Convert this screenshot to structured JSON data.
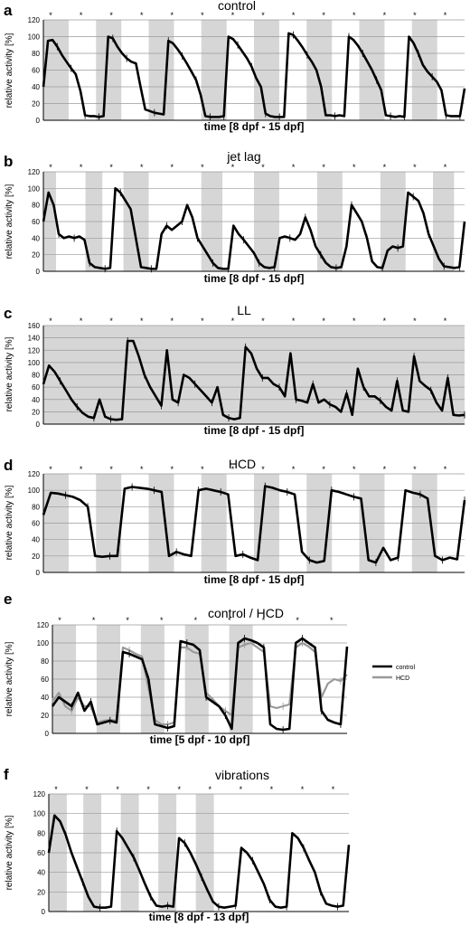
{
  "chart_data": [
    {
      "panel_label": "a",
      "title": "control",
      "type": "line",
      "xlabel": "time [8 dpf - 15 dpf]",
      "ylabel": "relative activity [%]",
      "ylim": [
        0,
        120
      ],
      "yticks": [
        0,
        20,
        40,
        60,
        80,
        100,
        120
      ],
      "grid": true,
      "marker": "*",
      "marker_count": 14,
      "shaded_intervals": [
        [
          0,
          0.12
        ],
        [
          0.25,
          0.37
        ],
        [
          0.5,
          0.62
        ],
        [
          0.75,
          0.87
        ],
        [
          1.0,
          1.12
        ],
        [
          1.25,
          1.37
        ],
        [
          1.5,
          1.62
        ],
        [
          1.75,
          1.87
        ]
      ],
      "series": [
        {
          "values": [
            40,
            95,
            96,
            88,
            78,
            70,
            62,
            55,
            35,
            6,
            5,
            5,
            4,
            5,
            100,
            98,
            88,
            80,
            74,
            70,
            68,
            40,
            13,
            11,
            9,
            8,
            7,
            95,
            92,
            85,
            77,
            68,
            58,
            48,
            30,
            5,
            4,
            4,
            4,
            5,
            100,
            97,
            90,
            82,
            74,
            64,
            50,
            40,
            8,
            5,
            4,
            4,
            4,
            104,
            102,
            95,
            87,
            78,
            70,
            60,
            40,
            6,
            6,
            5,
            6,
            5,
            100,
            96,
            89,
            80,
            70,
            60,
            48,
            36,
            6,
            5,
            4,
            5,
            4,
            100,
            92,
            80,
            66,
            58,
            52,
            46,
            36,
            6,
            5,
            5,
            5,
            38
          ]
        }
      ]
    },
    {
      "panel_label": "b",
      "title": "jet lag",
      "type": "line",
      "xlabel": "time [8 dpf - 15 dpf]",
      "ylabel": "relative activity [%]",
      "ylim": [
        0,
        120
      ],
      "yticks": [
        0,
        20,
        40,
        60,
        80,
        100,
        120
      ],
      "grid": true,
      "marker": "*",
      "marker_count": 14,
      "shaded_intervals": [
        [
          0,
          0.06
        ],
        [
          0.2,
          0.28
        ],
        [
          0.38,
          0.5
        ],
        [
          0.75,
          0.85
        ],
        [
          1.0,
          1.12
        ],
        [
          1.3,
          1.42
        ],
        [
          1.6,
          1.72
        ],
        [
          1.85,
          1.95
        ]
      ],
      "series": [
        {
          "values": [
            60,
            95,
            80,
            45,
            40,
            42,
            40,
            42,
            38,
            10,
            5,
            4,
            3,
            4,
            100,
            95,
            85,
            75,
            40,
            5,
            4,
            3,
            3,
            45,
            55,
            50,
            55,
            60,
            80,
            65,
            40,
            30,
            20,
            10,
            4,
            3,
            3,
            55,
            45,
            38,
            30,
            22,
            10,
            5,
            4,
            5,
            40,
            42,
            40,
            38,
            45,
            65,
            50,
            30,
            20,
            10,
            5,
            4,
            5,
            30,
            80,
            70,
            60,
            40,
            12,
            5,
            4,
            25,
            30,
            28,
            30,
            95,
            90,
            85,
            70,
            45,
            30,
            15,
            6,
            5,
            4,
            5,
            60
          ]
        }
      ]
    },
    {
      "panel_label": "c",
      "title": "LL",
      "type": "line",
      "xlabel": "time [8 dpf - 15 dpf]",
      "ylabel": "relative activity [%]",
      "ylim": [
        0,
        160
      ],
      "yticks": [
        0,
        20,
        40,
        60,
        80,
        100,
        120,
        140,
        160
      ],
      "grid": true,
      "marker": "*",
      "marker_count": 14,
      "shaded_intervals": [
        [
          0,
          2
        ]
      ],
      "series": [
        {
          "values": [
            65,
            95,
            85,
            70,
            55,
            40,
            28,
            18,
            12,
            10,
            40,
            12,
            8,
            7,
            8,
            135,
            135,
            110,
            80,
            60,
            45,
            30,
            120,
            40,
            35,
            80,
            75,
            65,
            55,
            45,
            35,
            60,
            15,
            10,
            8,
            10,
            125,
            115,
            90,
            75,
            75,
            65,
            60,
            45,
            115,
            40,
            38,
            35,
            65,
            35,
            40,
            32,
            28,
            20,
            50,
            15,
            90,
            60,
            45,
            45,
            38,
            28,
            22,
            70,
            22,
            20,
            110,
            70,
            62,
            55,
            35,
            22,
            75,
            15,
            14,
            15
          ]
        }
      ]
    },
    {
      "panel_label": "d",
      "title": "HCD",
      "type": "line",
      "xlabel": "time [8 dpf - 15 dpf]",
      "ylabel": "relative activity [%]",
      "ylim": [
        0,
        120
      ],
      "yticks": [
        0,
        20,
        40,
        60,
        80,
        100,
        120
      ],
      "grid": true,
      "marker": "*",
      "marker_count": 14,
      "shaded_intervals": [
        [
          0,
          0.12
        ],
        [
          0.25,
          0.37
        ],
        [
          0.5,
          0.62
        ],
        [
          0.75,
          0.87
        ],
        [
          1.0,
          1.12
        ],
        [
          1.25,
          1.37
        ],
        [
          1.5,
          1.62
        ],
        [
          1.75,
          1.87
        ]
      ],
      "series": [
        {
          "values": [
            70,
            97,
            96,
            94,
            92,
            88,
            80,
            20,
            19,
            20,
            20,
            102,
            104,
            103,
            102,
            100,
            98,
            20,
            25,
            22,
            20,
            100,
            102,
            100,
            98,
            95,
            20,
            22,
            18,
            15,
            105,
            103,
            100,
            98,
            95,
            25,
            15,
            12,
            14,
            100,
            98,
            95,
            92,
            90,
            15,
            12,
            30,
            15,
            18,
            100,
            97,
            95,
            90,
            20,
            15,
            18,
            16,
            88
          ]
        }
      ]
    },
    {
      "panel_label": "e",
      "title": "control / HCD",
      "type": "line",
      "xlabel": "time [5 dpf - 10 dpf]",
      "ylabel": "relative activity [%]",
      "ylim": [
        0,
        120
      ],
      "yticks": [
        0,
        20,
        40,
        60,
        80,
        100,
        120
      ],
      "grid": true,
      "marker": "*",
      "marker_count": 9,
      "shaded_intervals": [
        [
          0,
          0.16
        ],
        [
          0.3,
          0.46
        ],
        [
          0.6,
          0.76
        ],
        [
          0.9,
          1.06
        ],
        [
          1.2,
          1.36
        ]
      ],
      "legend": {
        "position": "right",
        "entries": [
          "control",
          "HCD"
        ]
      },
      "series": [
        {
          "name": "control",
          "values": [
            30,
            40,
            35,
            30,
            45,
            25,
            35,
            10,
            12,
            14,
            12,
            90,
            88,
            85,
            82,
            60,
            10,
            8,
            6,
            8,
            102,
            100,
            98,
            92,
            40,
            35,
            30,
            20,
            5,
            100,
            105,
            103,
            100,
            95,
            10,
            5,
            4,
            5,
            100,
            105,
            100,
            95,
            25,
            15,
            12,
            10,
            96
          ]
        },
        {
          "name": "HCD",
          "values": [
            35,
            45,
            30,
            25,
            40,
            30,
            30,
            12,
            14,
            15,
            14,
            95,
            92,
            88,
            85,
            50,
            15,
            10,
            10,
            12,
            95,
            95,
            90,
            88,
            45,
            38,
            30,
            25,
            20,
            95,
            98,
            100,
            95,
            90,
            30,
            28,
            30,
            32,
            95,
            100,
            96,
            90,
            40,
            55,
            60,
            58,
            65
          ]
        }
      ]
    },
    {
      "panel_label": "f",
      "title": "vibrations",
      "type": "line",
      "xlabel": "time [8 dpf - 13 dpf]",
      "ylabel": "relative activity [%]",
      "ylim": [
        0,
        120
      ],
      "yticks": [
        0,
        20,
        40,
        60,
        80,
        100,
        120
      ],
      "grid": true,
      "marker": "*",
      "marker_count": 10,
      "shaded_intervals": [
        [
          0,
          0.12
        ],
        [
          0.23,
          0.35
        ],
        [
          0.48,
          0.6
        ],
        [
          0.73,
          0.85
        ],
        [
          0.98,
          1.1
        ]
      ],
      "series": [
        {
          "values": [
            60,
            98,
            92,
            78,
            60,
            45,
            30,
            15,
            5,
            4,
            4,
            5,
            82,
            75,
            65,
            55,
            42,
            28,
            15,
            6,
            5,
            6,
            5,
            75,
            70,
            60,
            48,
            35,
            22,
            10,
            5,
            4,
            5,
            6,
            65,
            60,
            52,
            40,
            28,
            12,
            5,
            4,
            5,
            80,
            75,
            65,
            52,
            40,
            20,
            8,
            6,
            5,
            6,
            68
          ]
        }
      ]
    }
  ]
}
